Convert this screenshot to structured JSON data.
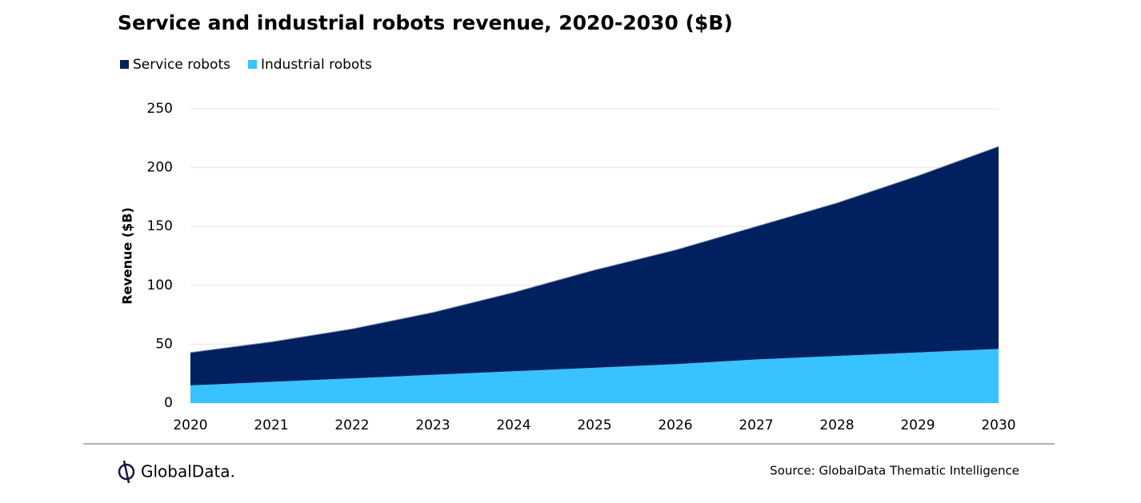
{
  "chart_data": {
    "type": "stacked_area",
    "title": "Service and industrial robots revenue, 2020-2030 ($B)",
    "y_label": "Revenue ($B)",
    "categories": [
      "2020",
      "2021",
      "2022",
      "2023",
      "2024",
      "2025",
      "2026",
      "2027",
      "2028",
      "2029",
      "2030"
    ],
    "series": [
      {
        "name": "Service robots",
        "color": "#002060",
        "values": [
          28,
          34,
          42,
          53,
          67,
          83,
          97,
          113,
          130,
          150,
          172
        ]
      },
      {
        "name": "Industrial robots",
        "color": "#38c2ff",
        "values": [
          15,
          18,
          21,
          24,
          27,
          30,
          33,
          37,
          40,
          43,
          46
        ]
      }
    ],
    "ylim": [
      0,
      250
    ],
    "yticks": [
      0,
      50,
      100,
      150,
      200,
      250
    ],
    "grid": true,
    "source": "Source: GlobalData Thematic Intelligence",
    "brand": "GlobalData."
  }
}
